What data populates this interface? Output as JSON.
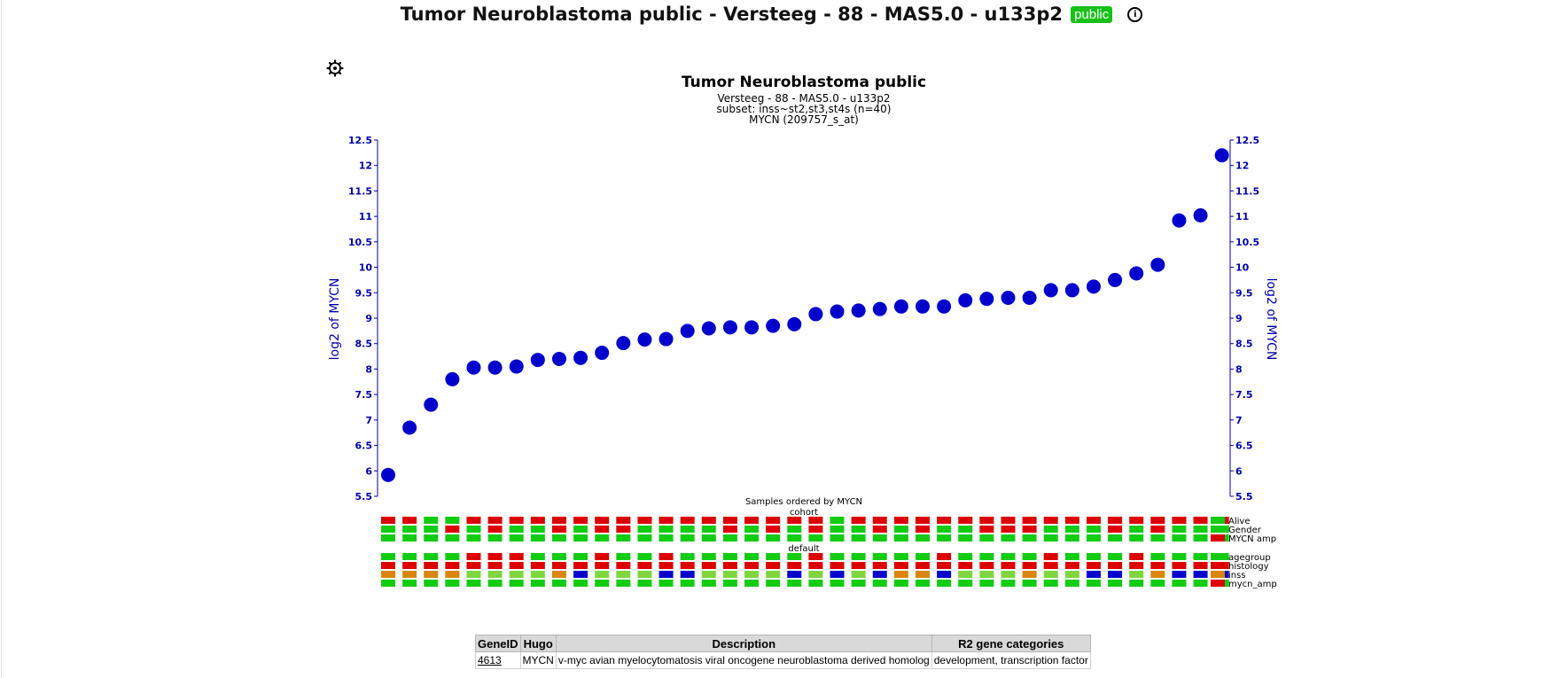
{
  "header": {
    "title": "Tumor Neuroblastoma public - Versteeg - 88 - MAS5.0 - u133p2",
    "badge": "public",
    "info_icon": "info-icon"
  },
  "settings_icon": "gear-icon",
  "chart_data": {
    "type": "scatter",
    "title": "Tumor Neuroblastoma public",
    "subtitle_lines": [
      "Versteeg - 88 - MAS5.0 - u133p2",
      "subset: inss~st2,st3,st4s (n=40)",
      "MYCN (209757_s_at)"
    ],
    "ylabel": "log2 of MYCN",
    "xlabel": "Samples ordered by MYCN",
    "ylim": [
      5.5,
      12.5
    ],
    "yticks": [
      "5.5",
      "6",
      "6.5",
      "7",
      "7.5",
      "8",
      "8.5",
      "9",
      "9.5",
      "10",
      "10.5",
      "11",
      "11.5",
      "12",
      "12.5"
    ],
    "point_color": "#0000cc",
    "axis_color": "#0000aa",
    "series": [
      {
        "values": [
          5.92,
          6.85,
          7.3,
          7.8,
          8.03,
          8.03,
          8.05,
          8.18,
          8.2,
          8.22,
          8.32,
          8.51,
          8.58,
          8.59,
          8.75,
          8.8,
          8.82,
          8.82,
          8.85,
          8.88,
          9.08,
          9.13,
          9.15,
          9.18,
          9.23,
          9.23,
          9.23,
          9.35,
          9.38,
          9.4,
          9.4,
          9.55,
          9.55,
          9.62,
          9.75,
          9.88,
          10.05,
          10.92,
          11.02,
          12.2
        ]
      }
    ],
    "annotation_groups": [
      {
        "label": "cohort",
        "rows": [
          {
            "name": "Alive",
            "colors": [
              "r",
              "r",
              "g",
              "g",
              "r",
              "r",
              "r",
              "r",
              "r",
              "r",
              "r",
              "r",
              "r",
              "r",
              "r",
              "r",
              "r",
              "r",
              "r",
              "r",
              "r",
              "g",
              "r",
              "r",
              "r",
              "r",
              "r",
              "r",
              "r",
              "r",
              "r",
              "r",
              "r",
              "r",
              "r",
              "r",
              "r",
              "r",
              "r",
              "r"
            ],
            "legend": "g"
          },
          {
            "name": "Gender",
            "colors": [
              "g",
              "g",
              "g",
              "r",
              "g",
              "r",
              "g",
              "g",
              "r",
              "g",
              "r",
              "r",
              "g",
              "g",
              "g",
              "g",
              "r",
              "g",
              "r",
              "g",
              "r",
              "g",
              "g",
              "r",
              "g",
              "r",
              "g",
              "g",
              "r",
              "r",
              "r",
              "g",
              "g",
              "g",
              "r",
              "g",
              "r",
              "g",
              "g",
              "g"
            ],
            "legend": "g"
          },
          {
            "name": "MYCN amp",
            "colors": [
              "g",
              "g",
              "g",
              "g",
              "g",
              "g",
              "g",
              "g",
              "g",
              "g",
              "g",
              "g",
              "g",
              "g",
              "g",
              "g",
              "g",
              "g",
              "g",
              "g",
              "g",
              "g",
              "g",
              "g",
              "g",
              "g",
              "g",
              "g",
              "g",
              "g",
              "g",
              "g",
              "g",
              "g",
              "g",
              "g",
              "g",
              "g",
              "g",
              "g"
            ],
            "legend": "r"
          }
        ]
      },
      {
        "label": "default",
        "rows": [
          {
            "name": "agegroup",
            "colors": [
              "g",
              "g",
              "g",
              "g",
              "r",
              "r",
              "r",
              "g",
              "g",
              "g",
              "r",
              "g",
              "g",
              "r",
              "g",
              "g",
              "g",
              "g",
              "g",
              "g",
              "r",
              "g",
              "g",
              "g",
              "g",
              "g",
              "r",
              "g",
              "g",
              "g",
              "g",
              "r",
              "g",
              "g",
              "g",
              "r",
              "g",
              "g",
              "g",
              "g"
            ],
            "legend": "g"
          },
          {
            "name": "histology",
            "colors": [
              "r",
              "r",
              "r",
              "r",
              "r",
              "r",
              "r",
              "r",
              "r",
              "r",
              "r",
              "r",
              "r",
              "r",
              "r",
              "r",
              "r",
              "r",
              "r",
              "r",
              "r",
              "r",
              "r",
              "r",
              "r",
              "r",
              "r",
              "r",
              "r",
              "r",
              "r",
              "r",
              "r",
              "r",
              "r",
              "r",
              "r",
              "r",
              "r",
              "r"
            ],
            "legend": "r"
          },
          {
            "name": "inss",
            "colors": [
              "o",
              "o",
              "o",
              "o",
              "l",
              "l",
              "l",
              "l",
              "o",
              "b",
              "l",
              "l",
              "l",
              "b",
              "b",
              "l",
              "l",
              "l",
              "l",
              "b",
              "l",
              "b",
              "l",
              "b",
              "o",
              "o",
              "b",
              "l",
              "l",
              "l",
              "o",
              "l",
              "l",
              "b",
              "b",
              "l",
              "o",
              "b",
              "b",
              "b"
            ],
            "legend": "o"
          },
          {
            "name": "mycn_amp",
            "colors": [
              "g",
              "g",
              "g",
              "g",
              "g",
              "g",
              "g",
              "g",
              "g",
              "g",
              "g",
              "g",
              "g",
              "g",
              "g",
              "g",
              "g",
              "g",
              "g",
              "g",
              "g",
              "g",
              "g",
              "g",
              "g",
              "g",
              "g",
              "g",
              "g",
              "g",
              "g",
              "g",
              "g",
              "g",
              "g",
              "g",
              "g",
              "g",
              "g",
              "g"
            ],
            "legend": "r"
          }
        ]
      }
    ],
    "palette": {
      "r": "#dd0000",
      "g": "#11cc11",
      "o": "#d9860b",
      "l": "#7fd63f",
      "b": "#0000cc"
    }
  },
  "gene_table": {
    "headers": [
      "GeneID",
      "Hugo",
      "Description",
      "R2 gene categories"
    ],
    "row": {
      "gene_id": "4613",
      "hugo": "MYCN",
      "description": "v-myc avian myelocytomatosis viral oncogene neuroblastoma derived homolog",
      "categories": "development, transcription factor"
    }
  }
}
